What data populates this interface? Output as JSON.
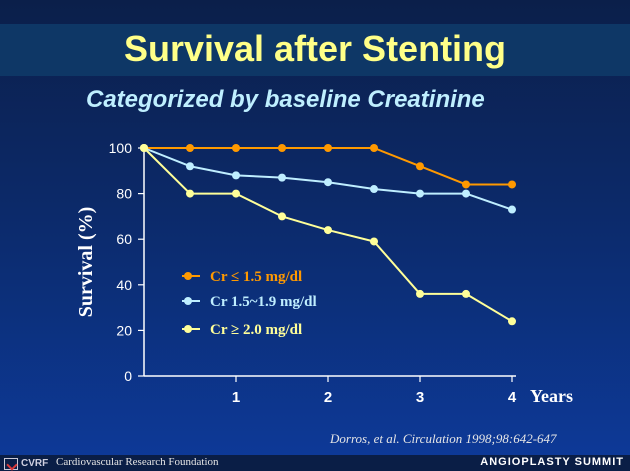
{
  "slide": {
    "title": "Survival after Stenting",
    "subtitle": "Categorized by baseline Creatinine",
    "citation": "Dorros, et al. Circulation 1998;98:642-647",
    "footer_org": "Cardiovascular Research Foundation",
    "footer_logo_text": "CVRF",
    "footer_right": "ANGIOPLASTY SUMMIT"
  },
  "colors": {
    "title": "#ffff88",
    "subtitle": "#bfefff",
    "series": [
      "#ff9900",
      "#bfeeff",
      "#ffff99"
    ],
    "axis": "#ffffff"
  },
  "chart_data": {
    "type": "line",
    "title": "",
    "xlabel": "Years",
    "ylabel": "Survival (%)",
    "xlim": [
      0,
      4
    ],
    "ylim": [
      0,
      100
    ],
    "xticks": [
      1,
      2,
      3,
      4
    ],
    "yticks": [
      0,
      20,
      40,
      60,
      80,
      100
    ],
    "grid": false,
    "legend_position": "center-left",
    "series": [
      {
        "name": "Cr ≤ 1.5 mg/dl",
        "color": "#ff9900",
        "x": [
          0,
          0.5,
          1,
          1.5,
          2,
          2.5,
          3,
          3.5,
          4
        ],
        "y": [
          100,
          100,
          100,
          100,
          100,
          100,
          92,
          84,
          84
        ]
      },
      {
        "name": "Cr 1.5~1.9 mg/dl",
        "color": "#bfeeff",
        "x": [
          0,
          0.5,
          1,
          1.5,
          2,
          2.5,
          3,
          3.5,
          4
        ],
        "y": [
          100,
          92,
          88,
          87,
          85,
          82,
          80,
          80,
          73
        ]
      },
      {
        "name": "Cr ≥ 2.0 mg/dl",
        "color": "#ffff99",
        "x": [
          0,
          0.5,
          1,
          1.5,
          2,
          2.5,
          3,
          3.5,
          4
        ],
        "y": [
          100,
          80,
          80,
          70,
          64,
          59,
          36,
          36,
          24
        ]
      }
    ]
  }
}
